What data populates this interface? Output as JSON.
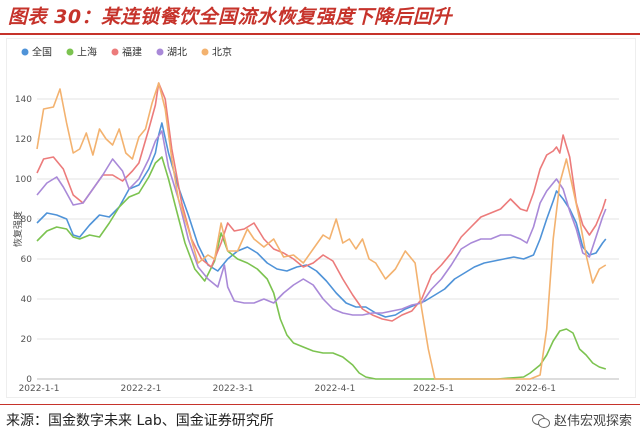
{
  "figure": {
    "title": "图表 30：某连锁餐饮全国流水恢复强度下降后回升",
    "source": "来源：国金数字未来 Lab、国金证券研究所",
    "watermark": "赵伟宏观探索"
  },
  "chart_data": {
    "type": "line",
    "title": "",
    "xlabel": "",
    "ylabel": "恢复强度",
    "ylim": [
      0,
      150
    ],
    "yticks": [
      0,
      20,
      40,
      60,
      80,
      100,
      120,
      140
    ],
    "xlim": [
      0,
      177
    ],
    "xticks": [
      {
        "x": 0,
        "label": "2022-1-1"
      },
      {
        "x": 31,
        "label": "2022-2-1"
      },
      {
        "x": 59,
        "label": "2022-3-1"
      },
      {
        "x": 90,
        "label": "2022-4-1"
      },
      {
        "x": 120,
        "label": "2022-5-1"
      },
      {
        "x": 151,
        "label": "2022-6-1"
      }
    ],
    "grid": "horizontal",
    "legend_position": "top-left",
    "series": [
      {
        "name": "全国",
        "color": "#4f93d8",
        "points": [
          [
            0,
            78
          ],
          [
            3,
            83
          ],
          [
            6,
            82
          ],
          [
            9,
            80
          ],
          [
            11,
            72
          ],
          [
            13,
            71
          ],
          [
            16,
            77
          ],
          [
            19,
            82
          ],
          [
            22,
            81
          ],
          [
            25,
            86
          ],
          [
            28,
            95
          ],
          [
            31,
            97
          ],
          [
            34,
            105
          ],
          [
            36,
            113
          ],
          [
            37,
            122
          ],
          [
            38,
            128
          ],
          [
            40,
            113
          ],
          [
            43,
            96
          ],
          [
            46,
            82
          ],
          [
            49,
            67
          ],
          [
            52,
            57
          ],
          [
            55,
            54
          ],
          [
            58,
            60
          ],
          [
            61,
            64
          ],
          [
            64,
            66
          ],
          [
            67,
            63
          ],
          [
            70,
            58
          ],
          [
            73,
            55
          ],
          [
            76,
            54
          ],
          [
            79,
            56
          ],
          [
            82,
            57
          ],
          [
            85,
            54
          ],
          [
            88,
            49
          ],
          [
            91,
            43
          ],
          [
            94,
            38
          ],
          [
            97,
            36
          ],
          [
            100,
            36
          ],
          [
            103,
            33
          ],
          [
            106,
            31
          ],
          [
            109,
            32
          ],
          [
            112,
            35
          ],
          [
            115,
            37
          ],
          [
            118,
            39
          ],
          [
            121,
            42
          ],
          [
            124,
            45
          ],
          [
            127,
            50
          ],
          [
            130,
            53
          ],
          [
            133,
            56
          ],
          [
            136,
            58
          ],
          [
            139,
            59
          ],
          [
            142,
            60
          ],
          [
            145,
            61
          ],
          [
            148,
            60
          ],
          [
            151,
            62
          ],
          [
            153,
            70
          ],
          [
            155,
            80
          ],
          [
            157,
            89
          ],
          [
            158,
            94
          ],
          [
            160,
            90
          ],
          [
            162,
            85
          ],
          [
            164,
            78
          ],
          [
            166,
            66
          ],
          [
            168,
            62
          ],
          [
            170,
            63
          ],
          [
            172,
            68
          ],
          [
            173,
            70
          ]
        ]
      },
      {
        "name": "上海",
        "color": "#7cc350",
        "points": [
          [
            0,
            69
          ],
          [
            3,
            74
          ],
          [
            6,
            76
          ],
          [
            9,
            75
          ],
          [
            11,
            71
          ],
          [
            13,
            70
          ],
          [
            16,
            72
          ],
          [
            19,
            71
          ],
          [
            22,
            78
          ],
          [
            25,
            86
          ],
          [
            28,
            91
          ],
          [
            31,
            93
          ],
          [
            34,
            101
          ],
          [
            36,
            108
          ],
          [
            38,
            111
          ],
          [
            40,
            100
          ],
          [
            42,
            87
          ],
          [
            45,
            68
          ],
          [
            48,
            55
          ],
          [
            51,
            49
          ],
          [
            54,
            59
          ],
          [
            56,
            73
          ],
          [
            58,
            64
          ],
          [
            61,
            60
          ],
          [
            64,
            58
          ],
          [
            67,
            55
          ],
          [
            70,
            50
          ],
          [
            72,
            43
          ],
          [
            74,
            30
          ],
          [
            76,
            22
          ],
          [
            78,
            18
          ],
          [
            81,
            16
          ],
          [
            84,
            14
          ],
          [
            87,
            13
          ],
          [
            90,
            13
          ],
          [
            93,
            11
          ],
          [
            96,
            7
          ],
          [
            98,
            3
          ],
          [
            100,
            1
          ],
          [
            103,
            0
          ],
          [
            110,
            0
          ],
          [
            120,
            0
          ],
          [
            130,
            0
          ],
          [
            140,
            0
          ],
          [
            148,
            1
          ],
          [
            150,
            3
          ],
          [
            153,
            7
          ],
          [
            155,
            12
          ],
          [
            157,
            19
          ],
          [
            159,
            24
          ],
          [
            161,
            25
          ],
          [
            163,
            23
          ],
          [
            165,
            15
          ],
          [
            167,
            12
          ],
          [
            169,
            8
          ],
          [
            171,
            6
          ],
          [
            173,
            5
          ]
        ]
      },
      {
        "name": "福建",
        "color": "#ec7b7b",
        "points": [
          [
            0,
            103
          ],
          [
            2,
            110
          ],
          [
            5,
            111
          ],
          [
            8,
            105
          ],
          [
            11,
            92
          ],
          [
            14,
            88
          ],
          [
            17,
            95
          ],
          [
            20,
            102
          ],
          [
            23,
            102
          ],
          [
            26,
            99
          ],
          [
            29,
            104
          ],
          [
            31,
            108
          ],
          [
            34,
            125
          ],
          [
            36,
            137
          ],
          [
            37,
            148
          ],
          [
            39,
            140
          ],
          [
            41,
            115
          ],
          [
            44,
            88
          ],
          [
            47,
            70
          ],
          [
            50,
            60
          ],
          [
            53,
            56
          ],
          [
            56,
            68
          ],
          [
            58,
            78
          ],
          [
            60,
            74
          ],
          [
            63,
            75
          ],
          [
            66,
            78
          ],
          [
            69,
            70
          ],
          [
            72,
            65
          ],
          [
            75,
            63
          ],
          [
            78,
            60
          ],
          [
            81,
            56
          ],
          [
            84,
            58
          ],
          [
            87,
            62
          ],
          [
            90,
            59
          ],
          [
            93,
            50
          ],
          [
            96,
            42
          ],
          [
            99,
            35
          ],
          [
            102,
            32
          ],
          [
            105,
            30
          ],
          [
            108,
            29
          ],
          [
            111,
            32
          ],
          [
            114,
            34
          ],
          [
            117,
            40
          ],
          [
            120,
            52
          ],
          [
            123,
            57
          ],
          [
            126,
            63
          ],
          [
            129,
            71
          ],
          [
            132,
            76
          ],
          [
            135,
            81
          ],
          [
            138,
            83
          ],
          [
            141,
            85
          ],
          [
            144,
            90
          ],
          [
            147,
            85
          ],
          [
            149,
            84
          ],
          [
            151,
            93
          ],
          [
            153,
            105
          ],
          [
            155,
            112
          ],
          [
            157,
            114
          ],
          [
            158,
            116
          ],
          [
            159,
            113
          ],
          [
            160,
            122
          ],
          [
            162,
            111
          ],
          [
            164,
            88
          ],
          [
            166,
            77
          ],
          [
            168,
            72
          ],
          [
            170,
            77
          ],
          [
            172,
            85
          ],
          [
            173,
            90
          ]
        ]
      },
      {
        "name": "湖北",
        "color": "#a989d8",
        "points": [
          [
            0,
            92
          ],
          [
            3,
            98
          ],
          [
            6,
            101
          ],
          [
            8,
            96
          ],
          [
            11,
            87
          ],
          [
            14,
            88
          ],
          [
            17,
            95
          ],
          [
            20,
            102
          ],
          [
            23,
            110
          ],
          [
            26,
            104
          ],
          [
            28,
            95
          ],
          [
            31,
            100
          ],
          [
            34,
            110
          ],
          [
            36,
            119
          ],
          [
            38,
            124
          ],
          [
            40,
            106
          ],
          [
            43,
            90
          ],
          [
            46,
            70
          ],
          [
            49,
            56
          ],
          [
            52,
            50
          ],
          [
            55,
            46
          ],
          [
            57,
            57
          ],
          [
            58,
            46
          ],
          [
            60,
            39
          ],
          [
            63,
            38
          ],
          [
            66,
            38
          ],
          [
            69,
            40
          ],
          [
            72,
            38
          ],
          [
            75,
            43
          ],
          [
            78,
            47
          ],
          [
            81,
            50
          ],
          [
            84,
            47
          ],
          [
            87,
            40
          ],
          [
            90,
            35
          ],
          [
            93,
            33
          ],
          [
            96,
            32
          ],
          [
            99,
            32
          ],
          [
            102,
            33
          ],
          [
            105,
            33
          ],
          [
            108,
            34
          ],
          [
            111,
            35
          ],
          [
            114,
            37
          ],
          [
            117,
            38
          ],
          [
            120,
            45
          ],
          [
            123,
            50
          ],
          [
            126,
            57
          ],
          [
            129,
            65
          ],
          [
            132,
            68
          ],
          [
            135,
            70
          ],
          [
            138,
            70
          ],
          [
            141,
            72
          ],
          [
            144,
            72
          ],
          [
            147,
            70
          ],
          [
            149,
            68
          ],
          [
            151,
            76
          ],
          [
            153,
            88
          ],
          [
            155,
            94
          ],
          [
            157,
            98
          ],
          [
            158,
            100
          ],
          [
            160,
            95
          ],
          [
            162,
            84
          ],
          [
            164,
            75
          ],
          [
            166,
            63
          ],
          [
            168,
            61
          ],
          [
            170,
            71
          ],
          [
            172,
            81
          ],
          [
            173,
            85
          ]
        ]
      },
      {
        "name": "北京",
        "color": "#f3b26f",
        "points": [
          [
            0,
            115
          ],
          [
            2,
            135
          ],
          [
            5,
            136
          ],
          [
            7,
            145
          ],
          [
            9,
            128
          ],
          [
            11,
            113
          ],
          [
            13,
            115
          ],
          [
            15,
            123
          ],
          [
            17,
            112
          ],
          [
            19,
            125
          ],
          [
            21,
            120
          ],
          [
            23,
            117
          ],
          [
            25,
            125
          ],
          [
            27,
            113
          ],
          [
            29,
            110
          ],
          [
            31,
            121
          ],
          [
            33,
            125
          ],
          [
            35,
            138
          ],
          [
            37,
            148
          ],
          [
            39,
            135
          ],
          [
            41,
            110
          ],
          [
            43,
            90
          ],
          [
            46,
            75
          ],
          [
            49,
            58
          ],
          [
            52,
            62
          ],
          [
            54,
            60
          ],
          [
            56,
            78
          ],
          [
            58,
            64
          ],
          [
            61,
            64
          ],
          [
            64,
            75
          ],
          [
            66,
            70
          ],
          [
            69,
            66
          ],
          [
            72,
            70
          ],
          [
            75,
            61
          ],
          [
            78,
            62
          ],
          [
            81,
            58
          ],
          [
            84,
            65
          ],
          [
            87,
            72
          ],
          [
            89,
            70
          ],
          [
            91,
            80
          ],
          [
            93,
            68
          ],
          [
            95,
            70
          ],
          [
            97,
            65
          ],
          [
            99,
            70
          ],
          [
            101,
            60
          ],
          [
            103,
            58
          ],
          [
            106,
            50
          ],
          [
            109,
            55
          ],
          [
            112,
            64
          ],
          [
            115,
            58
          ],
          [
            117,
            35
          ],
          [
            119,
            15
          ],
          [
            121,
            0
          ],
          [
            125,
            0
          ],
          [
            130,
            0
          ],
          [
            140,
            0
          ],
          [
            145,
            0
          ],
          [
            150,
            0
          ],
          [
            153,
            2
          ],
          [
            155,
            25
          ],
          [
            157,
            70
          ],
          [
            159,
            98
          ],
          [
            161,
            110
          ],
          [
            163,
            95
          ],
          [
            165,
            80
          ],
          [
            167,
            62
          ],
          [
            169,
            48
          ],
          [
            171,
            55
          ],
          [
            173,
            57
          ]
        ]
      }
    ]
  }
}
